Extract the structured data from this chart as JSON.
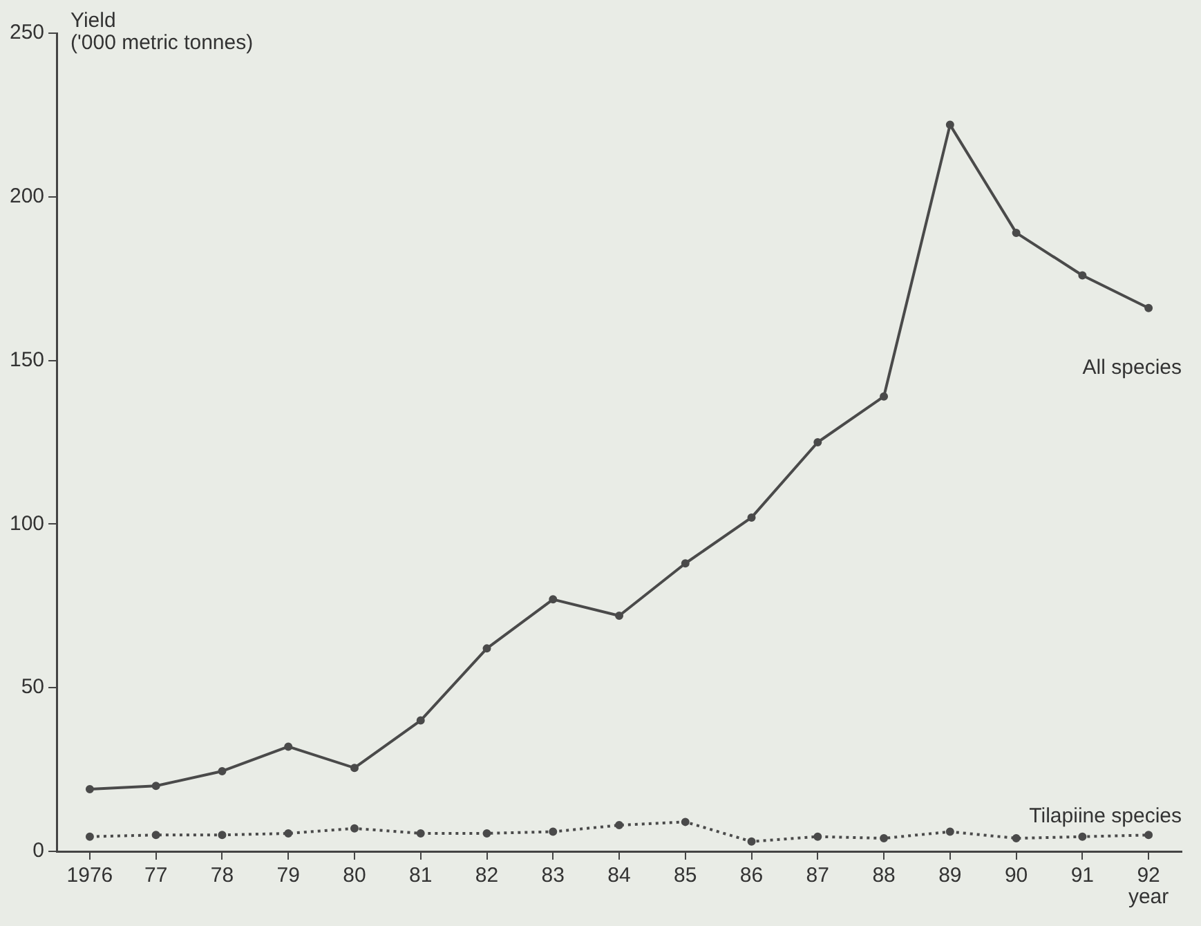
{
  "chart_data": {
    "type": "line",
    "ylabel": "Yield\n('000 metric tonnes)",
    "xlabel": "year",
    "categories": [
      "1976",
      "77",
      "78",
      "79",
      "80",
      "81",
      "82",
      "83",
      "84",
      "85",
      "86",
      "87",
      "88",
      "89",
      "90",
      "91",
      "92"
    ],
    "series": [
      {
        "name": "All species",
        "color": "#4a4a4a",
        "line_style": "solid",
        "values": [
          19,
          20,
          24.5,
          32,
          25.5,
          40,
          62,
          77,
          72,
          88,
          102,
          125,
          139,
          222,
          189,
          176,
          166
        ]
      },
      {
        "name": "Tilapiine species",
        "color": "#4a4a4a",
        "line_style": "dotted",
        "values": [
          4.5,
          5,
          5,
          5.5,
          7,
          5.5,
          5.5,
          6,
          8,
          9,
          3,
          4.5,
          4,
          6,
          4,
          4.5,
          5
        ]
      }
    ],
    "ylim": [
      0,
      250
    ],
    "yticks": [
      0,
      50,
      100,
      150,
      200,
      250
    ],
    "grid": false,
    "legend": false,
    "marker": "circle"
  }
}
